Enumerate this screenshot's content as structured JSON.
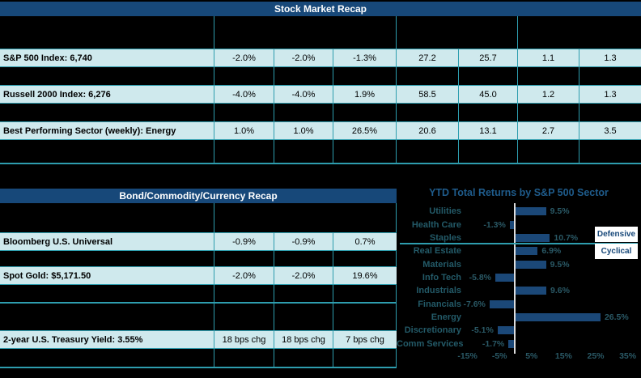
{
  "stock_table": {
    "title": "Stock Market Recap",
    "rows": [
      {
        "label": "S&P 500 Index: 6,740",
        "values": [
          "-2.0%",
          "-2.0%",
          "-1.3%",
          "27.2",
          "25.7",
          "1.1",
          "1.3"
        ]
      },
      {
        "label": "Russell 2000 Index: 6,276",
        "values": [
          "-4.0%",
          "-4.0%",
          "1.9%",
          "58.5",
          "45.0",
          "1.2",
          "1.3"
        ]
      },
      {
        "label": "Best Performing Sector (weekly): Energy",
        "values": [
          "1.0%",
          "1.0%",
          "26.5%",
          "20.6",
          "13.1",
          "2.7",
          "3.5"
        ]
      }
    ]
  },
  "bond_table": {
    "title": "Bond/Commodity/Currency Recap",
    "rows": [
      {
        "label": "Bloomberg U.S. Universal",
        "values": [
          "-0.9%",
          "-0.9%",
          "0.7%"
        ]
      },
      {
        "label": "Spot Gold: $5,171.50",
        "values": [
          "-2.0%",
          "-2.0%",
          "19.6%"
        ]
      },
      {
        "label": "2-year U.S. Treasury Yield: 3.55%",
        "values": [
          "18 bps chg",
          "18 bps chg",
          "7 bps chg"
        ]
      }
    ]
  },
  "chart_data": {
    "type": "bar",
    "orientation": "horizontal",
    "title": "YTD Total Returns by S&P 500 Sector",
    "categories": [
      "Utilities",
      "Health Care",
      "Staples",
      "Real Estate",
      "Materials",
      "Info Tech",
      "Industrials",
      "Financials",
      "Energy",
      "Discretionary",
      "Comm Services"
    ],
    "values": [
      9.5,
      -1.3,
      10.7,
      6.9,
      9.5,
      -5.8,
      9.6,
      -7.6,
      26.5,
      -5.1,
      -1.7
    ],
    "value_labels": [
      "9.5%",
      "-1.3%",
      "10.7%",
      "6.9%",
      "9.5%",
      "-5.8%",
      "9.6%",
      "-7.6%",
      "26.5%",
      "-5.1%",
      "-1.7%"
    ],
    "x_ticks": [
      "-15%",
      "-5%",
      "5%",
      "15%",
      "25%",
      "35%"
    ],
    "x_tick_values": [
      -15,
      -5,
      5,
      15,
      25,
      35
    ],
    "axis_range": [
      -17,
      39
    ],
    "grid": false,
    "legend_position": "none",
    "group_separator": {
      "after_category": "Staples",
      "above_label": "Defensive",
      "below_label": "Cyclical"
    }
  },
  "colors": {
    "background": "#000000",
    "header_navy": "#174879",
    "bar_navy": "#1B4878",
    "row_fill": "#CFE9ED",
    "border_teal": "#2E9DAE",
    "chart_title": "#1F5C8C",
    "category_label": "#235A68",
    "value_label": "#2A5966",
    "zero_axis": "#DCDCDC",
    "group_box_bg": "#FFFFFF",
    "header_text": "#FFFFFF"
  }
}
